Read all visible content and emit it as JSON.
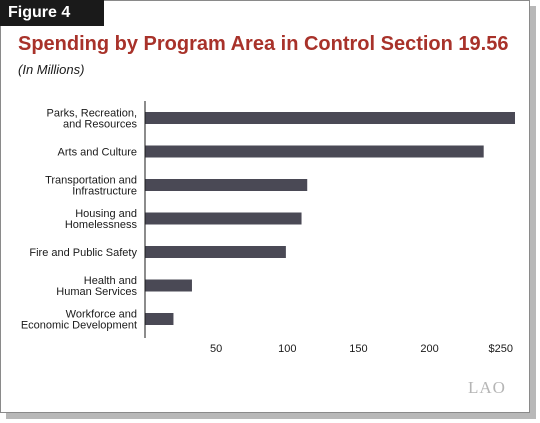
{
  "figure_label": "Figure 4",
  "chart_data": {
    "type": "bar",
    "orientation": "horizontal",
    "title": "Spending by Program Area in Control Section 19.56",
    "subtitle": "(In Millions)",
    "categories": [
      [
        "Parks, Recreation,",
        "and Resources"
      ],
      [
        "Arts and Culture"
      ],
      [
        "Transportation and",
        "Infrastructure"
      ],
      [
        "Housing and",
        "Homelessness"
      ],
      [
        "Fire and Public Safety"
      ],
      [
        "Health and",
        "Human Services"
      ],
      [
        "Workforce and",
        "Economic Development"
      ]
    ],
    "values": [
      260,
      238,
      114,
      110,
      99,
      33,
      20
    ],
    "xlim": [
      0,
      260
    ],
    "ticks": [
      {
        "value": 50,
        "label": "50"
      },
      {
        "value": 100,
        "label": "100"
      },
      {
        "value": 150,
        "label": "150"
      },
      {
        "value": 200,
        "label": "200"
      },
      {
        "value": 250,
        "label": "$250"
      }
    ],
    "grid": false,
    "bar_color": "#4a4955"
  },
  "logo": "LAO"
}
